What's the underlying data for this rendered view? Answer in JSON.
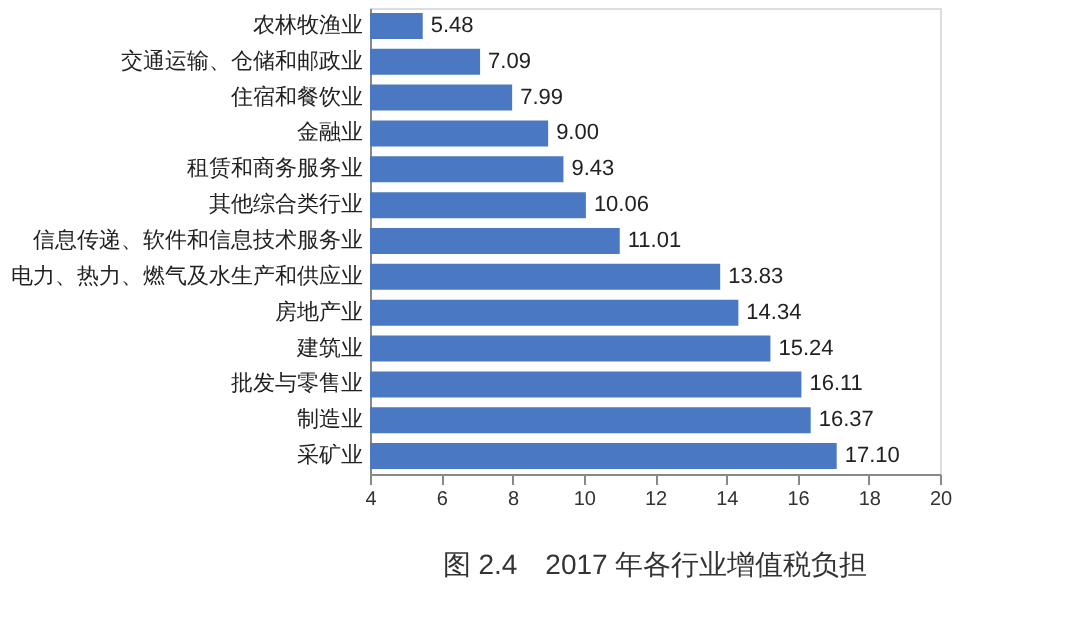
{
  "chart_data": {
    "type": "bar",
    "orientation": "horizontal",
    "title": "图 2.4　2017 年各行业增值税负担",
    "categories": [
      "农林牧渔业",
      "交通运输、仓储和邮政业",
      "住宿和餐饮业",
      "金融业",
      "租赁和商务服务业",
      "其他综合类行业",
      "信息传递、软件和信息技术服务业",
      "电力、热力、燃气及水生产和供应业",
      "房地产业",
      "建筑业",
      "批发与零售业",
      "制造业",
      "采矿业"
    ],
    "values": [
      5.48,
      7.09,
      7.99,
      9.0,
      9.43,
      10.06,
      11.01,
      13.83,
      14.34,
      15.24,
      16.11,
      16.37,
      17.1
    ],
    "value_labels": [
      "5.48",
      "7.09",
      "7.99",
      "9.00",
      "9.43",
      "10.06",
      "11.01",
      "13.83",
      "14.34",
      "15.24",
      "16.11",
      "16.37",
      "17.10"
    ],
    "color": "#4a78c2",
    "xlim": [
      4,
      20
    ],
    "xticks": [
      4,
      6,
      8,
      10,
      12,
      14,
      16,
      18,
      20
    ],
    "grid": false
  }
}
